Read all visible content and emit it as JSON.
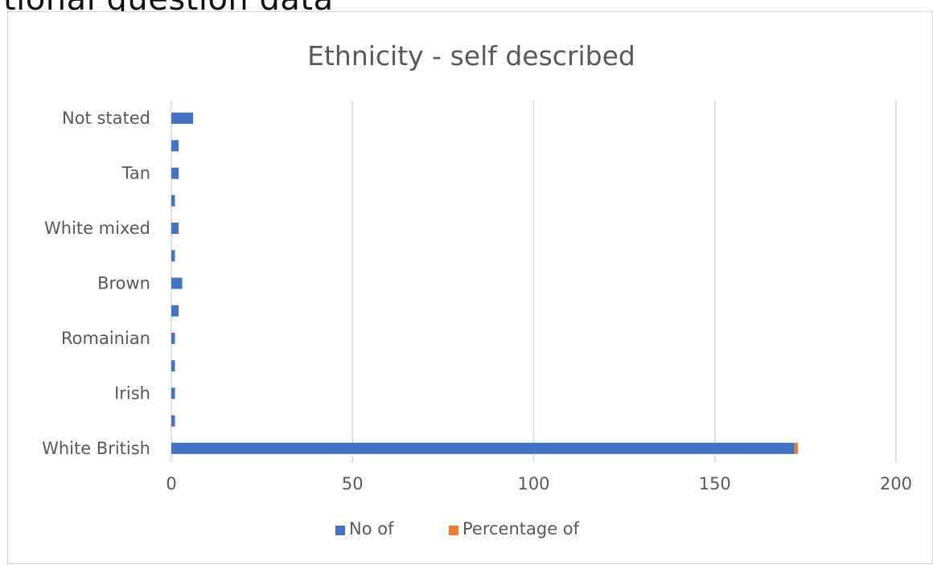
{
  "page": {
    "heading_fragment": "tional question data"
  },
  "chart_data": {
    "type": "bar",
    "orientation": "horizontal",
    "stacked": true,
    "title": "Ethnicity - self described",
    "xlabel": "",
    "ylabel": "",
    "xlim": [
      0,
      200
    ],
    "x_ticks": [
      0,
      50,
      100,
      150,
      200
    ],
    "grid": "vertical",
    "legend_position": "bottom",
    "categories": [
      "White British",
      "",
      "Irish",
      "",
      "Romainian",
      "",
      "Brown",
      "",
      "White mixed",
      "",
      "Tan",
      "",
      "Not stated"
    ],
    "series": [
      {
        "name": "No of",
        "color": "#4472C4",
        "values": [
          172,
          1,
          1,
          1,
          1,
          2,
          3,
          1,
          2,
          1,
          2,
          2,
          6
        ]
      },
      {
        "name": "Percentage of",
        "color": "#ED7D31",
        "values": [
          1.0,
          0.01,
          0.01,
          0.01,
          0.01,
          0.01,
          0.02,
          0.01,
          0.01,
          0.01,
          0.01,
          0.01,
          0.03
        ]
      }
    ]
  }
}
